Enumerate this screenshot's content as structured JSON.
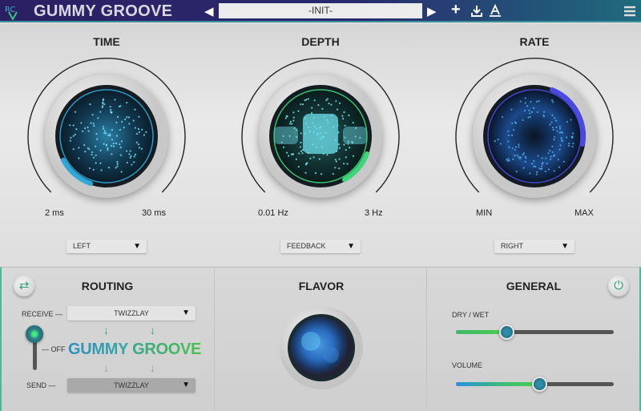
{
  "header": {
    "app_title": "GUMMY GROOVE",
    "preset_name": "-INIT-",
    "icons": [
      "logo-icon",
      "prev-preset-icon",
      "next-preset-icon",
      "add-icon",
      "save-icon",
      "a-icon",
      "menu-icon"
    ]
  },
  "knobs": [
    {
      "title": "TIME",
      "min_label": "2 ms",
      "max_label": "30 ms",
      "dropdown": "LEFT",
      "ring_color": "#2fa8d8"
    },
    {
      "title": "DEPTH",
      "min_label": "0.01 Hz",
      "max_label": "3 Hz",
      "dropdown": "FEEDBACK",
      "ring_color": "#3dd67a"
    },
    {
      "title": "RATE",
      "min_label": "MIN",
      "max_label": "MAX",
      "dropdown": "RIGHT",
      "ring_color": "#4a4ae0"
    }
  ],
  "routing": {
    "title": "ROUTING",
    "receive_label": "RECEIVE",
    "receive_value": "TWIZZLAY",
    "off_label": "OFF",
    "brand_word1": "GUMMY",
    "brand_word2": "GROOVE",
    "send_label": "SEND",
    "send_value": "TWIZZLAY"
  },
  "flavor": {
    "title": "FLAVOR"
  },
  "general": {
    "title": "GENERAL",
    "dry_wet_label": "DRY / WET",
    "dry_wet_value": 0.32,
    "volume_label": "VOLUME",
    "volume_value": 0.53,
    "power_on": true
  }
}
